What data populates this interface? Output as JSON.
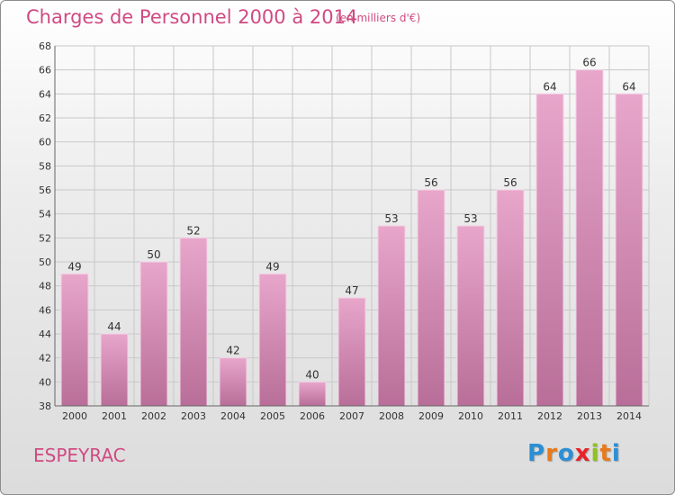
{
  "header": {
    "title": "Charges de Personnel 2000 à 2014",
    "subtitle": "(en milliers d'€)"
  },
  "footer": {
    "commune": "ESPEYRAC",
    "logo_text": "Proxiti"
  },
  "colors": {
    "title": "#d04a82",
    "bar_top": "#e8a6cb",
    "bar_bottom": "#b86e98",
    "grid": "#c8c8c8",
    "axis_text": "#333333",
    "logo_letters": [
      "#2a8fd6",
      "#e87a1a",
      "#2a8fd6",
      "#e8222a",
      "#8fc31f",
      "#e87a1a",
      "#2a8fd6"
    ]
  },
  "chart_data": {
    "type": "bar",
    "title": "Charges de Personnel 2000 à 2014",
    "subtitle": "(en milliers d'€)",
    "categories": [
      "2000",
      "2001",
      "2002",
      "2003",
      "2004",
      "2005",
      "2006",
      "2007",
      "2008",
      "2009",
      "2010",
      "2011",
      "2012",
      "2013",
      "2014"
    ],
    "values": [
      49,
      44,
      50,
      52,
      42,
      49,
      40,
      47,
      53,
      56,
      53,
      56,
      64,
      66,
      64
    ],
    "ylim": [
      38,
      68
    ],
    "yticks": [
      38,
      40,
      42,
      44,
      46,
      48,
      50,
      52,
      54,
      56,
      58,
      60,
      62,
      64,
      66,
      68
    ],
    "grid": true,
    "xlabel": "",
    "ylabel": ""
  }
}
